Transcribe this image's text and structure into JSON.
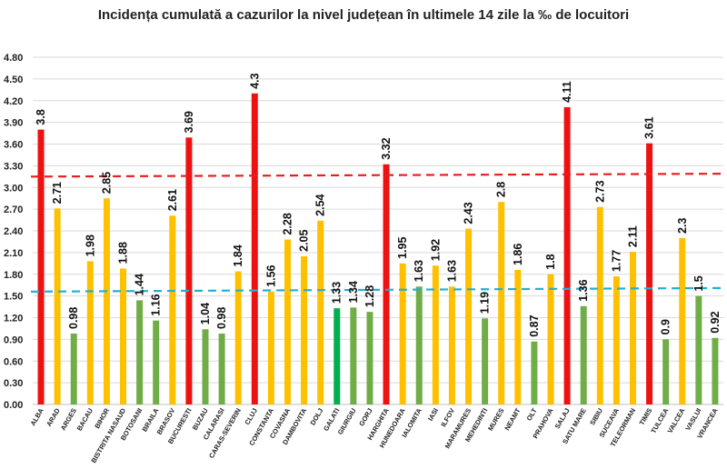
{
  "chart_data": {
    "type": "bar",
    "title": "Incidența cumulată a cazurilor la nivel județean în ultimele 14 zile la ‰ de locuitori",
    "xlabel": "",
    "ylabel": "",
    "ylim": [
      0,
      4.8
    ],
    "y_ticks": [
      "0.00",
      "0.30",
      "0.60",
      "0.90",
      "1.20",
      "1.50",
      "1.80",
      "2.10",
      "2.40",
      "2.70",
      "3.00",
      "3.30",
      "3.60",
      "3.90",
      "4.20",
      "4.50",
      "4.80"
    ],
    "y_tick_values": [
      0,
      0.3,
      0.6,
      0.9,
      1.2,
      1.5,
      1.8,
      2.1,
      2.4,
      2.7,
      3.0,
      3.3,
      3.6,
      3.9,
      4.2,
      4.5,
      4.8
    ],
    "grid": true,
    "legend": "none",
    "colors": {
      "red": "#ee1111",
      "yellow": "#ffc000",
      "green": "#70ad47",
      "brightgreen": "#00b050",
      "redline": "#e81e1e",
      "blueline": "#20b0d8"
    },
    "reference_lines": [
      {
        "style": "dashed",
        "color": "red",
        "start": 3.15,
        "end": 3.19
      },
      {
        "style": "dashed",
        "color": "blueline",
        "start": 1.56,
        "end": 1.61
      }
    ],
    "categories": [
      "ALBA",
      "ARAD",
      "ARGES",
      "BACAU",
      "BIHOR",
      "BISTRITA NASAUD",
      "BOTOSANI",
      "BRAILA",
      "BRASOV",
      "BUCURESTI",
      "BUZAU",
      "CALARASI",
      "CARAS-SEVERIN",
      "CLUJ",
      "CONSTANTA",
      "COVASNA",
      "DAMBOVITA",
      "DOLJ",
      "GALATI",
      "GIURGIU",
      "GORJ",
      "HARGHITA",
      "HUNEDOARA",
      "IALOMITA",
      "IASI",
      "ILFOV",
      "MARAMURES",
      "MEHEDINTI",
      "MURES",
      "NEAMT",
      "OLT",
      "PRAHOVA",
      "SALAJ",
      "SATU MARE",
      "SIBIU",
      "SUCEAVA",
      "TELEORMAN",
      "TIMIS",
      "TULCEA",
      "VALCEA",
      "VASLUI",
      "VRANCEA"
    ],
    "values": [
      3.8,
      2.71,
      0.98,
      1.98,
      2.85,
      1.88,
      1.44,
      1.16,
      2.61,
      3.69,
      1.04,
      0.98,
      1.84,
      4.3,
      1.56,
      2.28,
      2.05,
      2.54,
      1.33,
      1.34,
      1.28,
      3.32,
      1.95,
      1.63,
      1.92,
      1.63,
      2.43,
      1.19,
      2.8,
      1.86,
      0.87,
      1.8,
      4.11,
      1.36,
      2.73,
      1.77,
      2.11,
      3.61,
      0.9,
      2.3,
      1.5,
      0.92
    ],
    "data_labels": [
      "3.8",
      "2.71",
      "0.98",
      "1.98",
      "2.85",
      "1.88",
      "1.44",
      "1.16",
      "2.61",
      "3.69",
      "1.04",
      "0.98",
      "1.84",
      "4.3",
      "1.56",
      "2.28",
      "2.05",
      "2.54",
      "1.33",
      "1.34",
      "1.28",
      "3.32",
      "1.95",
      "1.63",
      "1.92",
      "1.63",
      "2.43",
      "1.19",
      "2.8",
      "1.86",
      "0.87",
      "1.8",
      "4.11",
      "1.36",
      "2.73",
      "1.77",
      "2.11",
      "3.61",
      "0.9",
      "2.3",
      "1.5",
      "0.92"
    ],
    "bar_colors": [
      "red",
      "yellow",
      "green",
      "yellow",
      "yellow",
      "yellow",
      "green",
      "green",
      "yellow",
      "red",
      "green",
      "green",
      "yellow",
      "red",
      "yellow",
      "yellow",
      "yellow",
      "yellow",
      "brightgreen",
      "green",
      "green",
      "red",
      "yellow",
      "green",
      "yellow",
      "yellow",
      "yellow",
      "green",
      "yellow",
      "yellow",
      "green",
      "yellow",
      "red",
      "green",
      "yellow",
      "yellow",
      "yellow",
      "red",
      "green",
      "yellow",
      "green",
      "green"
    ]
  }
}
